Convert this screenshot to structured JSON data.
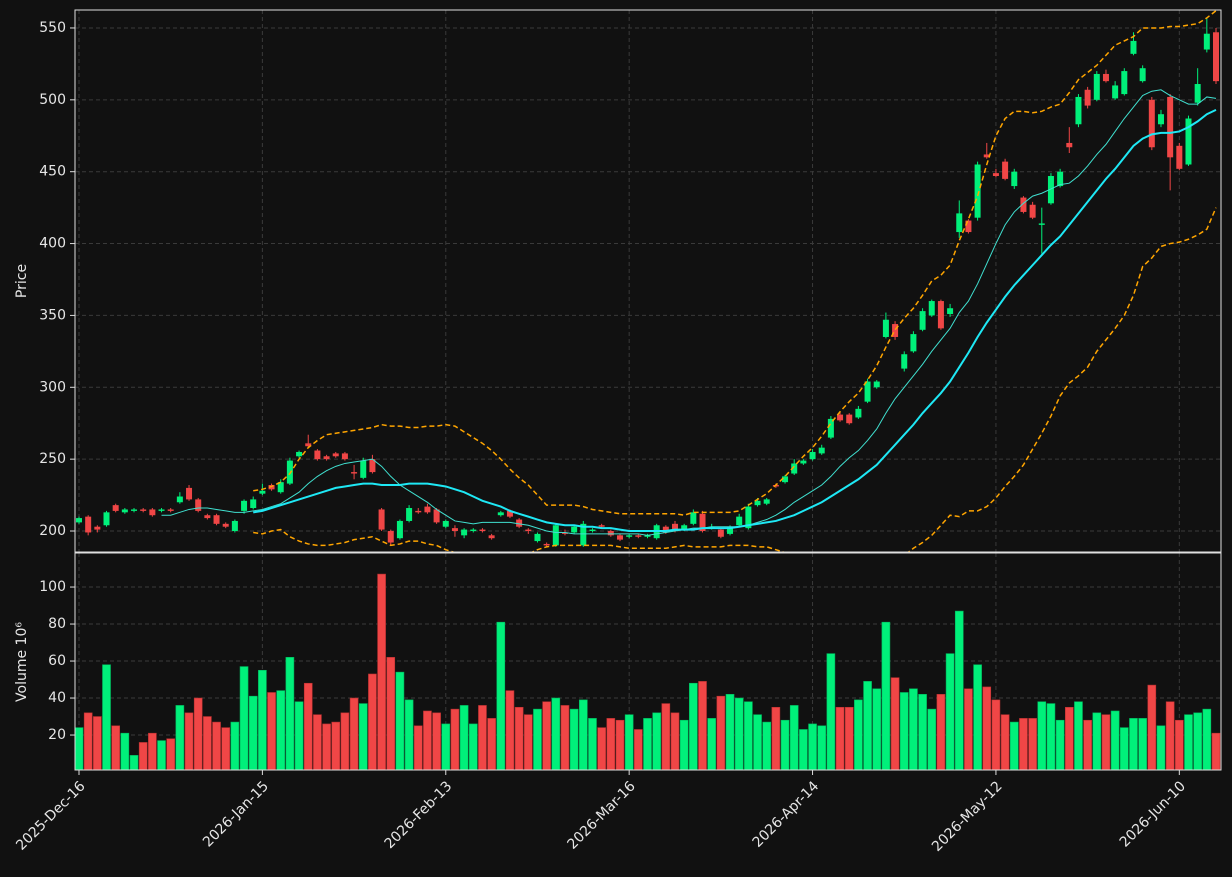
{
  "chart_data": [
    {
      "type": "candlestick",
      "ylabel": "Price",
      "categories": [
        "2025-Dec-16",
        null,
        null,
        null,
        null,
        null,
        null,
        null,
        null,
        null,
        null,
        null,
        null,
        null,
        null,
        null,
        null,
        null,
        null,
        null,
        "2026-Jan-15",
        null,
        null,
        null,
        null,
        null,
        null,
        null,
        null,
        null,
        null,
        null,
        null,
        null,
        null,
        null,
        null,
        null,
        null,
        null,
        "2026-Feb-13",
        null,
        null,
        null,
        null,
        null,
        null,
        null,
        null,
        null,
        null,
        null,
        null,
        null,
        null,
        null,
        null,
        null,
        null,
        null,
        "2026-Mar-16",
        null,
        null,
        null,
        null,
        null,
        null,
        null,
        null,
        null,
        null,
        null,
        null,
        null,
        null,
        null,
        null,
        null,
        null,
        null,
        "2026-Apr-14",
        null,
        null,
        null,
        null,
        null,
        null,
        null,
        null,
        null,
        null,
        null,
        null,
        null,
        null,
        null,
        null,
        null,
        null,
        null,
        "2026-May-12",
        null,
        null,
        null,
        null,
        null,
        null,
        null,
        null,
        null,
        null,
        null,
        null,
        null,
        null,
        null,
        null,
        null,
        null,
        null,
        "2026-Jun-10",
        null,
        null,
        null,
        null
      ],
      "open": [
        206,
        210,
        203,
        204,
        218,
        213,
        214,
        215,
        215,
        214,
        215,
        220,
        230,
        222,
        211,
        211,
        205,
        200,
        214,
        216,
        226,
        232,
        227,
        233,
        252,
        261,
        256,
        252,
        254,
        254,
        241,
        237,
        250,
        215,
        200,
        195,
        207,
        214,
        217,
        215,
        203,
        202,
        197,
        200,
        201,
        197,
        211,
        214,
        208,
        201,
        193,
        191,
        190,
        199,
        199,
        190,
        200,
        204,
        200,
        197,
        196,
        197,
        196,
        195,
        203,
        205,
        201,
        205,
        212,
        202,
        201,
        198,
        204,
        202,
        218,
        219,
        232,
        234,
        240,
        247,
        250,
        254,
        265,
        281,
        281,
        279,
        290,
        300,
        335,
        344,
        313,
        325,
        340,
        350,
        360,
        351,
        408,
        416,
        418,
        462,
        449,
        457,
        440,
        432,
        427,
        413,
        428,
        440,
        470,
        483,
        507,
        500,
        518,
        501,
        504,
        532,
        513,
        500,
        483,
        502,
        468,
        455,
        498,
        535,
        547
      ],
      "high": [
        210,
        211,
        204,
        214,
        219,
        216,
        216,
        216,
        216,
        216,
        216,
        227,
        232,
        223,
        212,
        212,
        206,
        208,
        222,
        224,
        233,
        233,
        236,
        251,
        256,
        267,
        257,
        253,
        255,
        255,
        246,
        251,
        253,
        216,
        201,
        208,
        218,
        216,
        219,
        216,
        208,
        204,
        202,
        202,
        202,
        198,
        214,
        215,
        209,
        202,
        199,
        192,
        205,
        201,
        204,
        207,
        202,
        205,
        201,
        198,
        198,
        198,
        198,
        205,
        204,
        207,
        205,
        215,
        214,
        205,
        202,
        204,
        212,
        219,
        223,
        223,
        233,
        239,
        250,
        250,
        257,
        260,
        280,
        283,
        282,
        287,
        306,
        305,
        352,
        346,
        325,
        339,
        355,
        361,
        361,
        358,
        430,
        417,
        457,
        470,
        452,
        459,
        452,
        433,
        429,
        425,
        449,
        452,
        481,
        504,
        509,
        520,
        521,
        513,
        522,
        547,
        524,
        502,
        493,
        504,
        470,
        489,
        522,
        557,
        550
      ],
      "low": [
        205,
        197,
        199,
        203,
        213,
        212,
        213,
        213,
        210,
        213,
        213,
        219,
        221,
        213,
        208,
        204,
        202,
        199,
        212,
        215,
        225,
        228,
        226,
        232,
        251,
        258,
        249,
        249,
        251,
        249,
        236,
        236,
        240,
        200,
        190,
        194,
        206,
        212,
        212,
        205,
        202,
        196,
        195,
        199,
        199,
        194,
        210,
        209,
        202,
        198,
        192,
        189,
        189,
        197,
        198,
        189,
        199,
        202,
        196,
        193,
        195,
        195,
        195,
        194,
        198,
        199,
        200,
        204,
        199,
        201,
        195,
        197,
        203,
        201,
        217,
        218,
        230,
        233,
        239,
        246,
        249,
        253,
        264,
        276,
        274,
        278,
        289,
        299,
        334,
        333,
        311,
        324,
        339,
        349,
        340,
        349,
        404,
        407,
        416,
        459,
        446,
        444,
        438,
        421,
        417,
        393,
        427,
        439,
        463,
        481,
        494,
        499,
        512,
        500,
        503,
        531,
        512,
        465,
        481,
        437,
        451,
        454,
        496,
        533,
        511
      ],
      "close": [
        209,
        199,
        201,
        213,
        214,
        215,
        215,
        214,
        211,
        215,
        214,
        224,
        222,
        214,
        209,
        205,
        203,
        207,
        221,
        222,
        228,
        229,
        234,
        249,
        255,
        259,
        250,
        250,
        252,
        250,
        240,
        249,
        241,
        201,
        192,
        207,
        216,
        213,
        213,
        206,
        207,
        200,
        201,
        201,
        200,
        195,
        213,
        210,
        203,
        200,
        198,
        190,
        204,
        198,
        203,
        205,
        201,
        203,
        197,
        194,
        197,
        196,
        197,
        204,
        199,
        200,
        204,
        213,
        200,
        203,
        196,
        203,
        210,
        217,
        221,
        222,
        231,
        238,
        247,
        249,
        255,
        258,
        278,
        277,
        275,
        285,
        304,
        304,
        347,
        335,
        323,
        337,
        353,
        360,
        341,
        355,
        421,
        408,
        455,
        460,
        447,
        445,
        450,
        422,
        418,
        414,
        447,
        450,
        467,
        502,
        496,
        518,
        513,
        510,
        520,
        541,
        522,
        467,
        490,
        460,
        452,
        487,
        511,
        546,
        513
      ],
      "up_color": "#00f07a",
      "down_color": "#f04646",
      "lines": [
        {
          "color": "#40e0d0",
          "width": 1,
          "style": "solid",
          "values": [
            null,
            null,
            null,
            null,
            null,
            null,
            null,
            null,
            null,
            211,
            211,
            213,
            215,
            216,
            216,
            215,
            214,
            213,
            213,
            214,
            215,
            217,
            219,
            223,
            227,
            233,
            238,
            242,
            245,
            247,
            248,
            249,
            250,
            245,
            238,
            232,
            228,
            224,
            220,
            215,
            211,
            207,
            206,
            205,
            206,
            206,
            206,
            206,
            205,
            204,
            202,
            200,
            199,
            199,
            198,
            198,
            198,
            198,
            198,
            198,
            198,
            198,
            197,
            198,
            199,
            200,
            201,
            202,
            202,
            203,
            203,
            203,
            203,
            204,
            206,
            208,
            211,
            215,
            220,
            224,
            228,
            232,
            238,
            245,
            251,
            256,
            263,
            271,
            282,
            292,
            300,
            308,
            316,
            325,
            333,
            341,
            352,
            360,
            372,
            386,
            400,
            413,
            422,
            428,
            433,
            435,
            438,
            441,
            442,
            447,
            454,
            462,
            469,
            478,
            487,
            495,
            503,
            506,
            507,
            503,
            500,
            497,
            497,
            502,
            501
          ]
        },
        {
          "color": "#1ee8f5",
          "width": 2,
          "style": "solid",
          "values": [
            null,
            null,
            null,
            null,
            null,
            null,
            null,
            null,
            null,
            null,
            null,
            null,
            null,
            null,
            null,
            null,
            null,
            null,
            null,
            213,
            214,
            216,
            218,
            220,
            222,
            224,
            226,
            228,
            230,
            231,
            232,
            233,
            233,
            232,
            232,
            232,
            233,
            233,
            233,
            232,
            231,
            229,
            227,
            224,
            221,
            219,
            217,
            214,
            212,
            210,
            208,
            206,
            205,
            204,
            204,
            203,
            203,
            202,
            202,
            201,
            200,
            200,
            200,
            200,
            200,
            201,
            201,
            201,
            202,
            202,
            202,
            202,
            203,
            204,
            205,
            206,
            207,
            209,
            211,
            214,
            217,
            220,
            224,
            228,
            232,
            236,
            241,
            246,
            253,
            260,
            267,
            274,
            282,
            289,
            296,
            304,
            314,
            324,
            335,
            345,
            354,
            363,
            371,
            378,
            385,
            392,
            399,
            405,
            413,
            421,
            429,
            437,
            445,
            452,
            460,
            468,
            473,
            476,
            477,
            477,
            478,
            481,
            485,
            490,
            493
          ]
        },
        {
          "color": "#ffa500",
          "width": 1.5,
          "style": "dashed",
          "values": [
            null,
            null,
            null,
            null,
            null,
            null,
            null,
            null,
            null,
            null,
            null,
            null,
            null,
            null,
            null,
            null,
            null,
            null,
            null,
            228,
            229,
            231,
            234,
            240,
            250,
            258,
            263,
            267,
            268,
            269,
            270,
            271,
            272,
            274,
            273,
            273,
            272,
            272,
            273,
            273,
            274,
            273,
            269,
            265,
            261,
            256,
            250,
            243,
            237,
            232,
            225,
            218,
            218,
            218,
            218,
            217,
            215,
            214,
            213,
            212,
            212,
            212,
            212,
            212,
            212,
            212,
            211,
            213,
            213,
            213,
            213,
            213,
            214,
            218,
            222,
            226,
            232,
            238,
            245,
            252,
            258,
            266,
            275,
            283,
            290,
            296,
            305,
            315,
            328,
            340,
            348,
            355,
            364,
            374,
            378,
            385,
            402,
            417,
            433,
            455,
            475,
            487,
            492,
            492,
            491,
            492,
            495,
            497,
            505,
            514,
            519,
            524,
            531,
            538,
            541,
            544,
            550,
            550,
            550,
            551,
            551,
            552,
            553,
            557,
            562
          ]
        },
        {
          "color": "#ffa500",
          "width": 1.5,
          "style": "dashed",
          "values": [
            null,
            null,
            null,
            null,
            null,
            null,
            null,
            null,
            null,
            null,
            null,
            null,
            null,
            null,
            null,
            null,
            null,
            null,
            null,
            199,
            198,
            200,
            201,
            196,
            193,
            191,
            190,
            190,
            191,
            192,
            194,
            195,
            196,
            193,
            190,
            191,
            193,
            193,
            191,
            190,
            187,
            185,
            184,
            183,
            181,
            181,
            181,
            181,
            181,
            184,
            187,
            189,
            190,
            190,
            190,
            190,
            190,
            190,
            190,
            189,
            188,
            188,
            188,
            188,
            188,
            189,
            190,
            189,
            189,
            189,
            189,
            190,
            190,
            190,
            189,
            189,
            187,
            185,
            183,
            180,
            177,
            174,
            172,
            170,
            169,
            168,
            167,
            168,
            172,
            178,
            183,
            188,
            192,
            197,
            204,
            211,
            210,
            214,
            214,
            217,
            223,
            231,
            238,
            246,
            257,
            268,
            280,
            294,
            303,
            308,
            314,
            325,
            333,
            341,
            350,
            364,
            384,
            390,
            398,
            400,
            401,
            403,
            406,
            410,
            425
          ]
        }
      ],
      "ylim": [
        185.4,
        562.5
      ],
      "yticks": [
        200,
        250,
        300,
        350,
        400,
        450,
        500,
        550
      ],
      "grid": true
    },
    {
      "type": "bar",
      "ylabel": "Volume  10⁶",
      "values": [
        24,
        32,
        30,
        58,
        25,
        21,
        9,
        16,
        21,
        17,
        18,
        36,
        32,
        40,
        30,
        27,
        24,
        27,
        57,
        41,
        55,
        43,
        44,
        62,
        38,
        48,
        31,
        26,
        27,
        32,
        40,
        37,
        53,
        107,
        62,
        54,
        39,
        25,
        33,
        32,
        26,
        34,
        36,
        26,
        36,
        29,
        81,
        44,
        35,
        31,
        34,
        38,
        40,
        36,
        34,
        39,
        29,
        24,
        29,
        28,
        31,
        23,
        29,
        32,
        37,
        32,
        28,
        48,
        49,
        29,
        41,
        42,
        40,
        38,
        31,
        27,
        35,
        28,
        36,
        23,
        26,
        25,
        64,
        35,
        35,
        39,
        49,
        45,
        81,
        51,
        43,
        45,
        42,
        34,
        42,
        64,
        87,
        45,
        58,
        46,
        39,
        31,
        27,
        29,
        29,
        38,
        37,
        28,
        35,
        38,
        28,
        32,
        31,
        33,
        24,
        29,
        29,
        47,
        25,
        38,
        28,
        31,
        32,
        34,
        21
      ],
      "ylim": [
        1.1,
        118.4
      ],
      "yticks": [
        20,
        40,
        60,
        80,
        100
      ],
      "grid": true
    }
  ]
}
